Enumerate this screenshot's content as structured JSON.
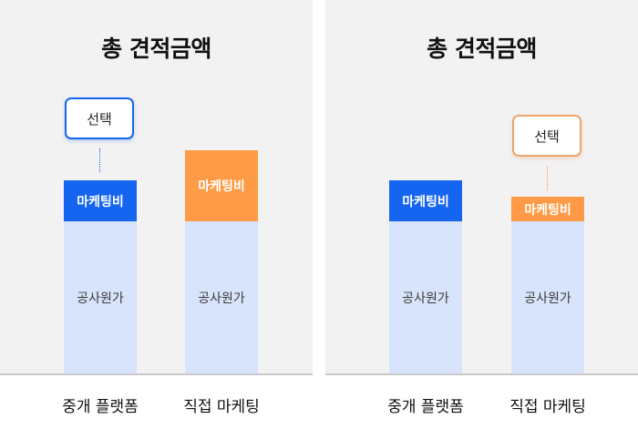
{
  "panels": [
    {
      "title": "총 견적금액",
      "bars": [
        {
          "label": "중개 플랫폼",
          "base": "공사원가",
          "top": "마케팅비",
          "top_color": "#1565f0",
          "selected": true
        },
        {
          "label": "직접 마케팅",
          "base": "공사원가",
          "top": "마케팅비",
          "top_color": "#ff9b46",
          "selected": false
        }
      ],
      "callout": "선택"
    },
    {
      "title": "총 견적금액",
      "bars": [
        {
          "label": "중개 플랫폼",
          "base": "공사원가",
          "top": "마케팅비",
          "top_color": "#1565f0",
          "selected": false
        },
        {
          "label": "직접 마케팅",
          "base": "공사원가",
          "top": "마케팅비",
          "top_color": "#ff9b46",
          "selected": true
        }
      ],
      "callout": "선택"
    }
  ]
}
